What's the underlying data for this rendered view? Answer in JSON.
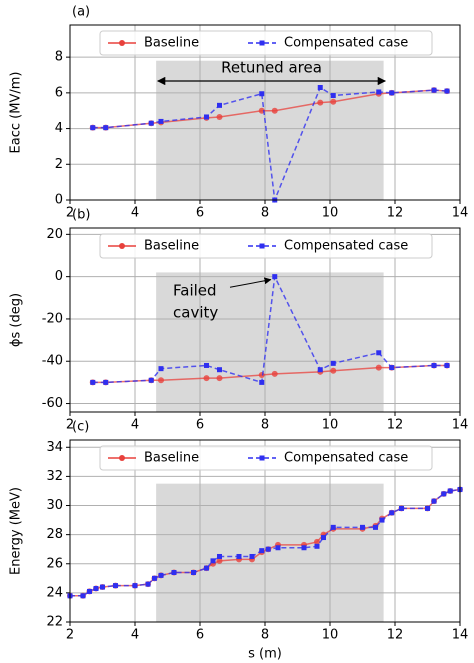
{
  "chart_data": [
    {
      "type": "line",
      "panel_label": "(a)",
      "ylabel": "Eacc (MV/m)",
      "annotation": "Retuned area",
      "xlim": [
        2,
        14
      ],
      "xticks": [
        2,
        4,
        6,
        8,
        10,
        12,
        14
      ],
      "ylim": [
        0,
        9.8
      ],
      "yticks": [
        0,
        2,
        4,
        6,
        8
      ],
      "grid": true,
      "legend": "top",
      "shaded_region": [
        4.65,
        11.65
      ],
      "x": [
        2.7,
        3.1,
        4.5,
        4.8,
        6.2,
        6.6,
        7.9,
        8.3,
        9.7,
        10.1,
        11.5,
        11.9,
        13.2,
        13.6
      ],
      "series": [
        {
          "name": "Baseline",
          "color": "#e8413c",
          "linestyle": "solid",
          "marker": "circle",
          "values": [
            4.05,
            4.05,
            4.3,
            4.35,
            4.6,
            4.65,
            5.0,
            5.0,
            5.45,
            5.5,
            5.95,
            6.0,
            6.15,
            6.1
          ]
        },
        {
          "name": "Compensated case",
          "color": "#2f2ff0",
          "linestyle": "dashed",
          "marker": "square",
          "values": [
            4.05,
            4.05,
            4.3,
            4.4,
            4.65,
            5.3,
            5.95,
            0,
            6.3,
            5.85,
            6.05,
            6.0,
            6.15,
            6.1
          ]
        }
      ]
    },
    {
      "type": "line",
      "panel_label": "(b)",
      "ylabel": "ϕs (deg)",
      "annotation": [
        "Failed",
        "cavity"
      ],
      "xlim": [
        2,
        14
      ],
      "xticks": [
        2,
        4,
        6,
        8,
        10,
        12,
        14
      ],
      "ylim": [
        -64,
        23
      ],
      "yticks": [
        -60,
        -40,
        -20,
        0,
        20
      ],
      "grid": true,
      "legend": "top",
      "shaded_region": [
        4.65,
        11.65
      ],
      "x": [
        2.7,
        3.1,
        4.5,
        4.8,
        6.2,
        6.6,
        7.9,
        8.3,
        9.7,
        10.1,
        11.5,
        11.9,
        13.2,
        13.6
      ],
      "series": [
        {
          "name": "Baseline",
          "color": "#e8413c",
          "linestyle": "solid",
          "marker": "circle",
          "values": [
            -50,
            -50,
            -49,
            -49,
            -48,
            -48,
            -46.5,
            -46,
            -45,
            -44.5,
            -43,
            -43,
            -42,
            -42
          ]
        },
        {
          "name": "Compensated case",
          "color": "#2f2ff0",
          "linestyle": "dashed",
          "marker": "square",
          "values": [
            -50,
            -50,
            -49,
            -43.5,
            -42,
            -44,
            -50,
            0,
            -44,
            -41,
            -36,
            -43,
            -42,
            -42
          ]
        }
      ]
    },
    {
      "type": "line",
      "panel_label": "(c)",
      "ylabel": "Energy (MeV)",
      "xlabel": "s (m)",
      "xlim": [
        2,
        14
      ],
      "xticks": [
        2,
        4,
        6,
        8,
        10,
        12,
        14
      ],
      "ylim": [
        22,
        34.5
      ],
      "yticks": [
        22,
        24,
        26,
        28,
        30,
        32,
        34
      ],
      "grid": true,
      "legend": "top",
      "shaded_region": [
        4.65,
        11.65
      ],
      "x": [
        2.0,
        2.4,
        2.6,
        2.8,
        3.0,
        3.4,
        4.0,
        4.4,
        4.6,
        4.8,
        5.2,
        5.8,
        6.2,
        6.4,
        6.6,
        7.2,
        7.6,
        7.9,
        8.1,
        8.4,
        9.2,
        9.6,
        9.8,
        10.1,
        11.0,
        11.4,
        11.6,
        11.9,
        12.2,
        13.0,
        13.2,
        13.5,
        13.7,
        14.0
      ],
      "series": [
        {
          "name": "Baseline",
          "color": "#e8413c",
          "linestyle": "solid",
          "marker": "circle",
          "values": [
            23.8,
            23.8,
            24.1,
            24.3,
            24.4,
            24.5,
            24.5,
            24.6,
            25.0,
            25.2,
            25.4,
            25.4,
            25.7,
            26.0,
            26.2,
            26.3,
            26.3,
            26.8,
            27.0,
            27.3,
            27.3,
            27.5,
            28.0,
            28.4,
            28.4,
            28.6,
            29.1,
            29.5,
            29.8,
            29.8,
            30.3,
            30.8,
            31.0,
            31.1
          ]
        },
        {
          "name": "Compensated case",
          "color": "#2f2ff0",
          "linestyle": "dashed",
          "marker": "square",
          "values": [
            23.8,
            23.8,
            24.1,
            24.3,
            24.4,
            24.5,
            24.5,
            24.6,
            25.0,
            25.2,
            25.4,
            25.4,
            25.7,
            26.2,
            26.5,
            26.5,
            26.5,
            26.9,
            27.0,
            27.1,
            27.1,
            27.2,
            27.8,
            28.5,
            28.5,
            28.5,
            29.0,
            29.5,
            29.8,
            29.8,
            30.3,
            30.8,
            31.0,
            31.1
          ]
        }
      ]
    }
  ]
}
